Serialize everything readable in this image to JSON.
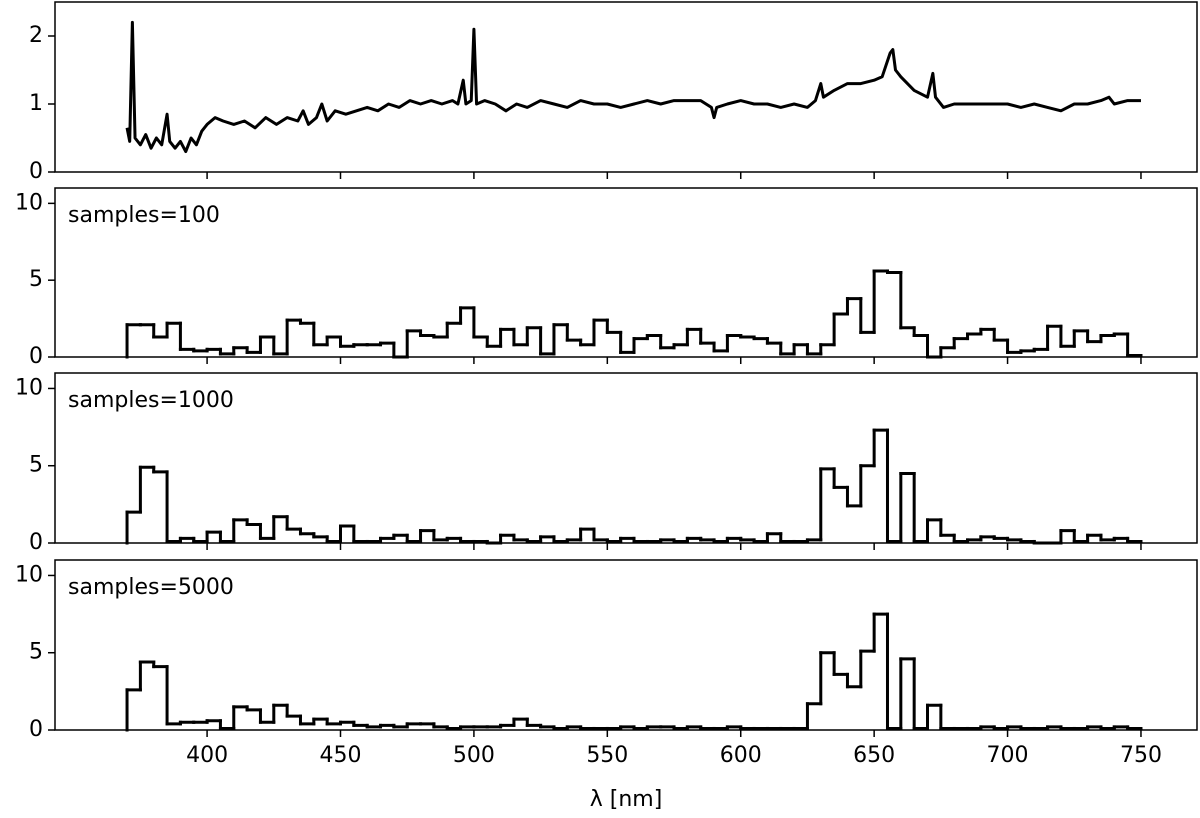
{
  "chart_data": [
    {
      "type": "line",
      "color": "#000000",
      "x": [
        370,
        371,
        372,
        373,
        375,
        377,
        379,
        381,
        383,
        385,
        386,
        388,
        390,
        392,
        394,
        396,
        398,
        400,
        403,
        406,
        410,
        414,
        418,
        422,
        426,
        430,
        434,
        436,
        438,
        441,
        443,
        445,
        448,
        452,
        456,
        460,
        464,
        468,
        472,
        476,
        480,
        484,
        488,
        492,
        494,
        496,
        497,
        499,
        500,
        501,
        504,
        508,
        512,
        516,
        520,
        525,
        530,
        535,
        540,
        545,
        550,
        555,
        560,
        565,
        570,
        575,
        580,
        585,
        589,
        590,
        591,
        595,
        600,
        605,
        610,
        615,
        620,
        625,
        628,
        630,
        631,
        635,
        640,
        645,
        650,
        653,
        656,
        657,
        658,
        660,
        665,
        670,
        672,
        673,
        676,
        680,
        685,
        690,
        695,
        700,
        705,
        710,
        715,
        720,
        725,
        730,
        735,
        738,
        740,
        745,
        750
      ],
      "values": [
        0.65,
        0.45,
        2.2,
        0.5,
        0.4,
        0.55,
        0.35,
        0.5,
        0.4,
        0.85,
        0.45,
        0.35,
        0.45,
        0.3,
        0.5,
        0.4,
        0.6,
        0.7,
        0.8,
        0.75,
        0.7,
        0.75,
        0.65,
        0.8,
        0.7,
        0.8,
        0.75,
        0.9,
        0.7,
        0.8,
        1.0,
        0.75,
        0.9,
        0.85,
        0.9,
        0.95,
        0.9,
        1.0,
        0.95,
        1.05,
        1.0,
        1.05,
        1.0,
        1.05,
        1.0,
        1.35,
        1.0,
        1.05,
        2.1,
        1.0,
        1.05,
        1.0,
        0.9,
        1.0,
        0.95,
        1.05,
        1.0,
        0.95,
        1.05,
        1.0,
        1.0,
        0.95,
        1.0,
        1.05,
        1.0,
        1.05,
        1.05,
        1.05,
        0.95,
        0.8,
        0.95,
        1.0,
        1.05,
        1.0,
        1.0,
        0.95,
        1.0,
        0.95,
        1.05,
        1.3,
        1.1,
        1.2,
        1.3,
        1.3,
        1.35,
        1.4,
        1.75,
        1.8,
        1.5,
        1.4,
        1.2,
        1.1,
        1.45,
        1.1,
        0.95,
        1.0,
        1.0,
        1.0,
        1.0,
        1.0,
        0.95,
        1.0,
        0.95,
        0.9,
        1.0,
        1.0,
        1.05,
        1.1,
        1.0,
        1.05,
        1.05
      ],
      "xlim": [
        343,
        771
      ],
      "xticks": [
        400,
        450,
        500,
        550,
        600,
        650,
        700,
        750
      ],
      "ylim": [
        0,
        2.5
      ],
      "yticks": [
        0,
        1,
        2
      ]
    },
    {
      "type": "histogram",
      "color": "#000000",
      "annotation": "samples=100",
      "bins": [
        370,
        375,
        380,
        385,
        390,
        395,
        400,
        405,
        410,
        415,
        420,
        425,
        430,
        435,
        440,
        445,
        450,
        455,
        460,
        465,
        470,
        475,
        480,
        485,
        490,
        495,
        500,
        505,
        510,
        515,
        520,
        525,
        530,
        535,
        540,
        545,
        550,
        555,
        560,
        565,
        570,
        575,
        580,
        585,
        590,
        595,
        600,
        605,
        610,
        615,
        620,
        625,
        630,
        635,
        640,
        645,
        650,
        655,
        660,
        665,
        670,
        675,
        680,
        685,
        690,
        695,
        700,
        705,
        710,
        715,
        720,
        725,
        730,
        735,
        740,
        745,
        750
      ],
      "values": [
        2.1,
        2.1,
        1.3,
        2.2,
        0.5,
        0.4,
        0.5,
        0.2,
        0.6,
        0.3,
        1.3,
        0.2,
        2.4,
        2.2,
        0.8,
        1.3,
        0.7,
        0.8,
        0.8,
        0.9,
        0,
        1.7,
        1.4,
        1.3,
        2.2,
        3.2,
        1.3,
        0.7,
        1.8,
        0.8,
        1.9,
        0.2,
        2.1,
        1.1,
        0.8,
        2.4,
        1.6,
        0.3,
        1.2,
        1.4,
        0.6,
        0.8,
        1.8,
        0.9,
        0.4,
        1.4,
        1.3,
        1.2,
        0.9,
        0.2,
        0.8,
        0.2,
        0.8,
        2.8,
        3.8,
        1.6,
        5.6,
        5.5,
        1.9,
        1.4,
        0,
        0.6,
        1.2,
        1.5,
        1.8,
        1.1,
        0.3,
        0.4,
        0.5,
        2.0,
        0.7,
        1.7,
        1.0,
        1.4,
        1.5,
        0.1
      ],
      "xlim": [
        343,
        771
      ],
      "xticks": [
        400,
        450,
        500,
        550,
        600,
        650,
        700,
        750
      ],
      "ylim": [
        0,
        11
      ],
      "yticks": [
        0,
        5,
        10
      ]
    },
    {
      "type": "histogram",
      "color": "#000000",
      "annotation": "samples=1000",
      "bins": [
        370,
        375,
        380,
        385,
        390,
        395,
        400,
        405,
        410,
        415,
        420,
        425,
        430,
        435,
        440,
        445,
        450,
        455,
        460,
        465,
        470,
        475,
        480,
        485,
        490,
        495,
        500,
        505,
        510,
        515,
        520,
        525,
        530,
        535,
        540,
        545,
        550,
        555,
        560,
        565,
        570,
        575,
        580,
        585,
        590,
        595,
        600,
        605,
        610,
        615,
        620,
        625,
        630,
        635,
        640,
        645,
        650,
        655,
        660,
        665,
        670,
        675,
        680,
        685,
        690,
        695,
        700,
        705,
        710,
        715,
        720,
        725,
        730,
        735,
        740,
        745,
        750
      ],
      "values": [
        2.0,
        4.9,
        4.6,
        0.1,
        0.3,
        0.1,
        0.7,
        0.1,
        1.5,
        1.2,
        0.3,
        1.7,
        0.9,
        0.6,
        0.4,
        0.1,
        1.1,
        0.1,
        0.1,
        0.3,
        0.5,
        0.1,
        0.8,
        0.2,
        0.3,
        0.1,
        0.1,
        0,
        0.5,
        0.2,
        0.1,
        0.4,
        0.1,
        0.2,
        0.9,
        0.2,
        0.1,
        0.3,
        0.1,
        0.1,
        0.2,
        0.1,
        0.3,
        0.2,
        0.1,
        0.3,
        0.2,
        0.1,
        0.6,
        0.1,
        0.1,
        0.2,
        4.8,
        3.6,
        2.4,
        5.0,
        7.3,
        0.1,
        4.5,
        0.1,
        1.5,
        0.5,
        0.1,
        0.2,
        0.4,
        0.3,
        0.2,
        0.1,
        0,
        0,
        0.8,
        0.1,
        0.5,
        0.2,
        0.3,
        0.1
      ],
      "xlim": [
        343,
        771
      ],
      "xticks": [
        400,
        450,
        500,
        550,
        600,
        650,
        700,
        750
      ],
      "ylim": [
        0,
        11
      ],
      "yticks": [
        0,
        5,
        10
      ]
    },
    {
      "type": "histogram",
      "color": "#000000",
      "annotation": "samples=5000",
      "xlabel": "λ [nm]",
      "bins": [
        370,
        375,
        380,
        385,
        390,
        395,
        400,
        405,
        410,
        415,
        420,
        425,
        430,
        435,
        440,
        445,
        450,
        455,
        460,
        465,
        470,
        475,
        480,
        485,
        490,
        495,
        500,
        505,
        510,
        515,
        520,
        525,
        530,
        535,
        540,
        545,
        550,
        555,
        560,
        565,
        570,
        575,
        580,
        585,
        590,
        595,
        600,
        605,
        610,
        615,
        620,
        625,
        630,
        635,
        640,
        645,
        650,
        655,
        660,
        665,
        670,
        675,
        680,
        685,
        690,
        695,
        700,
        705,
        710,
        715,
        720,
        725,
        730,
        735,
        740,
        745,
        750
      ],
      "values": [
        2.6,
        4.4,
        4.1,
        0.4,
        0.5,
        0.5,
        0.6,
        0.1,
        1.5,
        1.3,
        0.5,
        1.6,
        0.9,
        0.4,
        0.7,
        0.4,
        0.5,
        0.3,
        0.2,
        0.3,
        0.2,
        0.4,
        0.4,
        0.2,
        0.1,
        0.2,
        0.2,
        0.2,
        0.3,
        0.7,
        0.3,
        0.2,
        0.1,
        0.2,
        0.1,
        0.1,
        0.1,
        0.2,
        0.1,
        0.2,
        0.2,
        0.1,
        0.2,
        0.1,
        0.1,
        0.2,
        0.1,
        0.1,
        0.1,
        0.1,
        0.1,
        1.7,
        5.0,
        3.6,
        2.8,
        5.1,
        7.5,
        0.1,
        4.6,
        0.1,
        1.6,
        0.1,
        0.1,
        0.1,
        0.2,
        0.1,
        0.2,
        0.1,
        0.1,
        0.2,
        0.1,
        0.1,
        0.2,
        0.1,
        0.2,
        0.1
      ],
      "xlim": [
        343,
        771
      ],
      "xticks": [
        400,
        450,
        500,
        550,
        600,
        650,
        700,
        750
      ],
      "ylim": [
        0,
        11
      ],
      "yticks": [
        0,
        5,
        10
      ]
    }
  ]
}
